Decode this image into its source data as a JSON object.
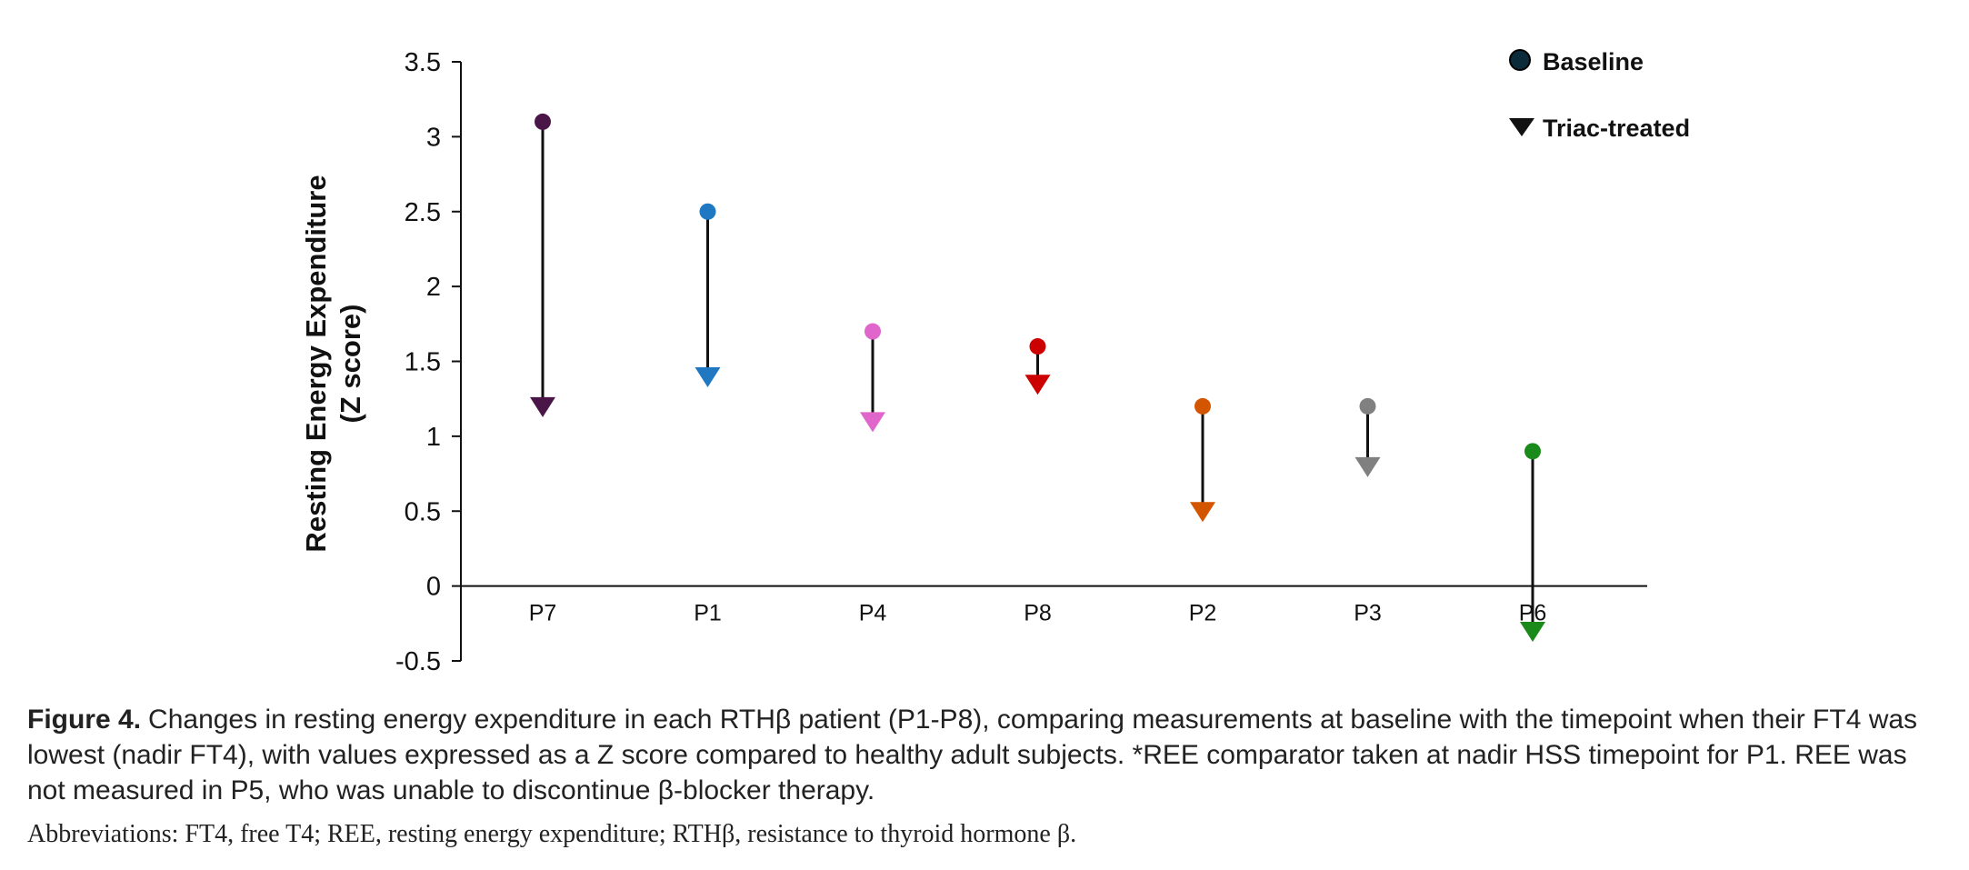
{
  "chart_data": {
    "type": "dot-arrow",
    "ylabel_line1": "Resting Energy Expenditure",
    "ylabel_line2": "(Z score)",
    "ylim": [
      -0.5,
      3.5
    ],
    "yticks": [
      "3.5",
      "3",
      "2.5",
      "2",
      "1.5",
      "1",
      "0.5",
      "0",
      "-0.5"
    ],
    "categories": [
      "P7",
      "P1",
      "P4",
      "P8",
      "P2",
      "P3",
      "P6"
    ],
    "series": [
      {
        "name": "Baseline",
        "marker": "circle",
        "values": [
          3.1,
          2.5,
          1.7,
          1.6,
          1.2,
          1.2,
          0.9
        ]
      },
      {
        "name": "Triac-treated",
        "marker": "triangle-down",
        "values": [
          1.2,
          1.4,
          1.1,
          1.35,
          0.5,
          0.8,
          -0.3
        ]
      }
    ],
    "colors": [
      "#4a1547",
      "#1f78c1",
      "#e066cc",
      "#cc0000",
      "#d45500",
      "#808080",
      "#1a8a1a"
    ],
    "legend_position": "top-right"
  },
  "legend": {
    "baseline_label": "Baseline",
    "treated_label": "Triac-treated"
  },
  "caption": {
    "label": "Figure 4.",
    "text": "Changes in resting energy expenditure in each RTHβ patient (P1-P8), comparing measurements at baseline with the timepoint when their FT4 was lowest (nadir FT4), with values expressed as a Z score compared to healthy adult subjects. *REE comparator taken at nadir HSS timepoint for P1. REE was not measured in P5, who was unable to discontinue β-blocker therapy."
  },
  "abbreviations": "Abbreviations: FT4, free T4; REE, resting energy expenditure; RTHβ, resistance to thyroid hormone β."
}
